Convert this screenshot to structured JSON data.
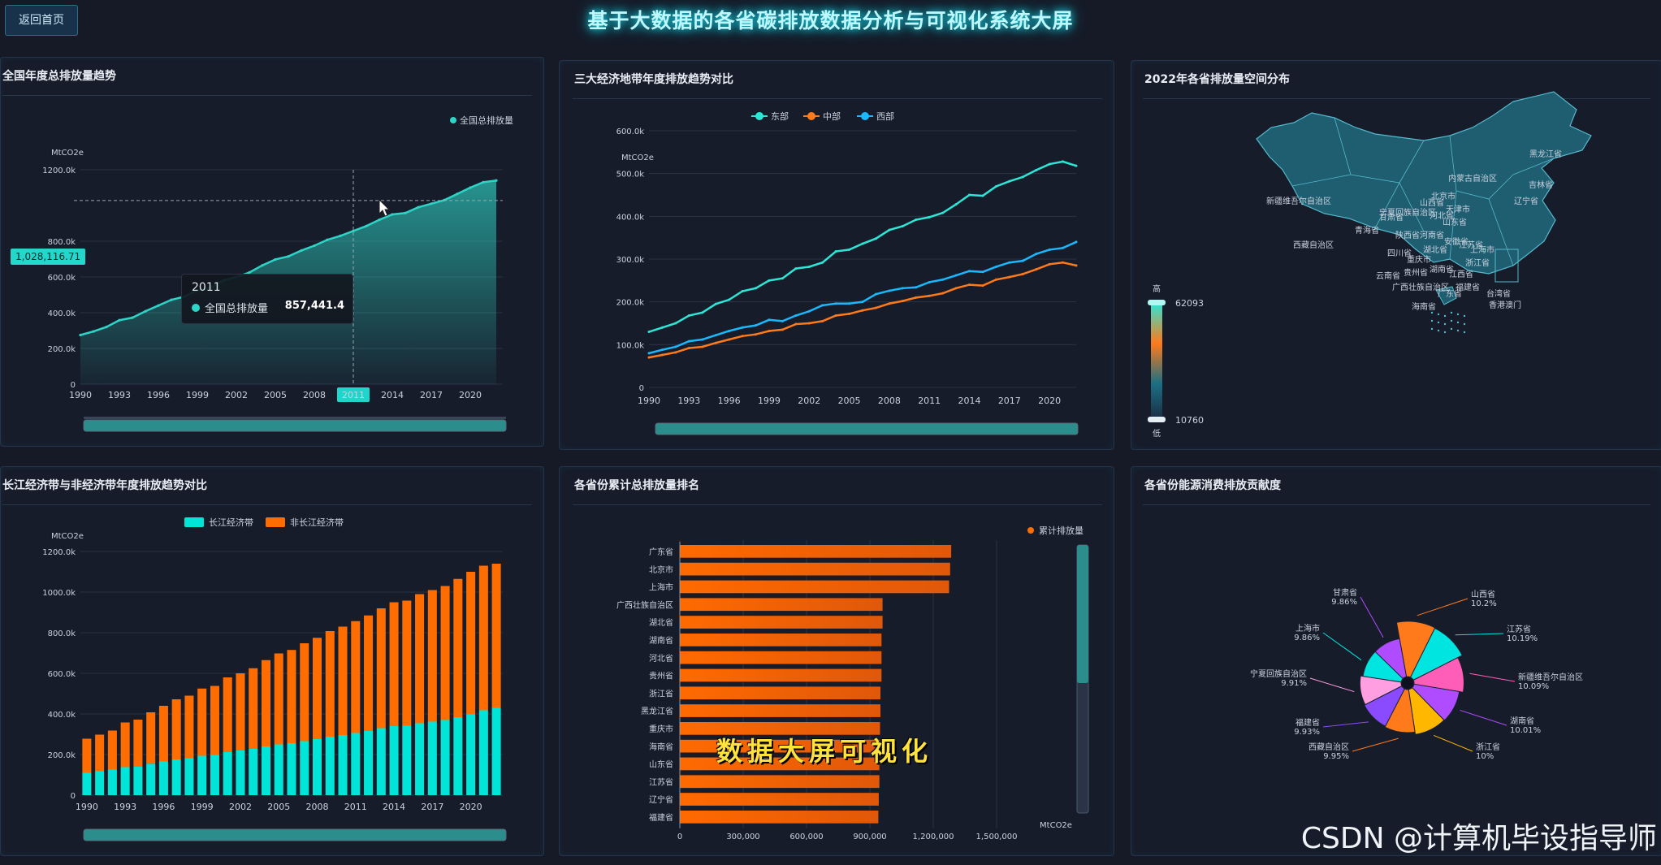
{
  "header": {
    "back_label": "返回首页",
    "title": "基于大数据的各省碳排放数据分析与可视化系统大屏"
  },
  "panels": {
    "national": {
      "title": "全国年度总排放量趋势",
      "legend": "全国总排放量",
      "unit": "MtCO2e"
    },
    "regions": {
      "title": "三大经济地带年度排放趋势对比",
      "unit": "MtCO2e"
    },
    "map": {
      "title": "2022年各省排放量空间分布",
      "vmax_label": "高",
      "vmin_label": "低",
      "vmax": "62093",
      "vmin": "10760"
    },
    "yangtze": {
      "title": "长江经济带与非经济带年度排放趋势对比",
      "unit": "MtCO2e"
    },
    "ranking": {
      "title": "各省份累计总排放量排名",
      "legend": "累计排放量",
      "unit": "MtCO2e"
    },
    "energy": {
      "title": "各省份能源消费排放贡献度"
    }
  },
  "tooltip": {
    "year": "2011",
    "label": "全国总排放量",
    "value": "857,441.4"
  },
  "cursor": {
    "value": "1,028,116.71",
    "year": "2011"
  },
  "overlay": {
    "caption": "数据大屏可视化"
  },
  "watermark": "CSDN @计算机毕设指导师",
  "colors": {
    "teal": "#2ed4c6",
    "east": "#2ee6d6",
    "central": "#ff7a1a",
    "west": "#19b8ff",
    "orange": "#ff6d00",
    "cyan": "#00e5d8"
  },
  "map_labels": [
    "黑龙江省",
    "吉林省",
    "辽宁省",
    "内蒙古自治区",
    "新疆维吾尔自治区",
    "甘肃省",
    "宁夏回族自治区",
    "青海省",
    "陕西省",
    "山西省",
    "河北省",
    "北京市",
    "天津市",
    "山东省",
    "河南省",
    "西藏自治区",
    "四川省",
    "重庆市",
    "湖北省",
    "安徽省",
    "江苏省",
    "上海市",
    "浙江省",
    "湖南省",
    "江西省",
    "福建省",
    "贵州省",
    "云南省",
    "广西壮族自治区",
    "广东省",
    "台湾省",
    "海南省",
    "香港澳门"
  ],
  "chart_data": [
    {
      "type": "area",
      "title": "全国年度总排放量趋势",
      "ylabel": "MtCO2e",
      "legend": [
        "全国总排放量"
      ],
      "ylim": [
        0,
        1200000
      ],
      "yticks": [
        "0",
        "200.0k",
        "400.0k",
        "600.0k",
        "800.0k",
        "1200.0k"
      ],
      "xticks": [
        "1990",
        "1993",
        "1996",
        "1999",
        "2002",
        "2005",
        "2008",
        "2011",
        "2014",
        "2017",
        "2020"
      ],
      "x": [
        1990,
        1991,
        1992,
        1993,
        1994,
        1995,
        1996,
        1997,
        1998,
        1999,
        2000,
        2001,
        2002,
        2003,
        2004,
        2005,
        2006,
        2007,
        2008,
        2009,
        2010,
        2011,
        2012,
        2013,
        2014,
        2015,
        2016,
        2017,
        2018,
        2019,
        2020,
        2021,
        2022
      ],
      "series": [
        {
          "name": "全国总排放量",
          "values": [
            275000,
            295000,
            320000,
            358000,
            372000,
            408000,
            440000,
            472000,
            490000,
            525000,
            538000,
            580000,
            600000,
            625000,
            665000,
            698000,
            715000,
            748000,
            775000,
            808000,
            830000,
            857441,
            885000,
            920000,
            950000,
            958000,
            990000,
            1010000,
            1030000,
            1065000,
            1100000,
            1130000,
            1140000
          ]
        }
      ]
    },
    {
      "type": "line",
      "title": "三大经济地带年度排放趋势对比",
      "ylabel": "MtCO2e",
      "legend": [
        "东部",
        "中部",
        "西部"
      ],
      "ylim": [
        0,
        600000
      ],
      "yticks": [
        "0",
        "100.0k",
        "200.0k",
        "300.0k",
        "400.0k",
        "500.0k",
        "600.0k"
      ],
      "xticks": [
        "1990",
        "1993",
        "1996",
        "1999",
        "2002",
        "2005",
        "2008",
        "2011",
        "2014",
        "2017",
        "2020"
      ],
      "x": [
        1990,
        1991,
        1992,
        1993,
        1994,
        1995,
        1996,
        1997,
        1998,
        1999,
        2000,
        2001,
        2002,
        2003,
        2004,
        2005,
        2006,
        2007,
        2008,
        2009,
        2010,
        2011,
        2012,
        2013,
        2014,
        2015,
        2016,
        2017,
        2018,
        2019,
        2020,
        2021,
        2022
      ],
      "series": [
        {
          "name": "东部",
          "values": [
            130000,
            140000,
            150000,
            168000,
            175000,
            195000,
            205000,
            225000,
            232000,
            250000,
            255000,
            278000,
            282000,
            292000,
            318000,
            322000,
            336000,
            348000,
            368000,
            377000,
            392000,
            398000,
            408000,
            428000,
            450000,
            448000,
            470000,
            482000,
            492000,
            508000,
            522000,
            528000,
            518000
          ]
        },
        {
          "name": "中部",
          "values": [
            70000,
            76000,
            82000,
            92000,
            95000,
            104000,
            112000,
            120000,
            124000,
            132000,
            135000,
            148000,
            150000,
            155000,
            168000,
            172000,
            180000,
            186000,
            196000,
            202000,
            210000,
            214000,
            220000,
            232000,
            240000,
            238000,
            252000,
            258000,
            265000,
            276000,
            288000,
            292000,
            285000
          ]
        },
        {
          "name": "西部",
          "values": [
            80000,
            88000,
            95000,
            108000,
            112000,
            122000,
            132000,
            140000,
            145000,
            158000,
            155000,
            168000,
            178000,
            192000,
            196000,
            196000,
            200000,
            218000,
            226000,
            232000,
            234000,
            246000,
            252000,
            262000,
            272000,
            270000,
            282000,
            292000,
            296000,
            312000,
            322000,
            326000,
            340000
          ]
        }
      ]
    },
    {
      "type": "bar",
      "title": "长江经济带与非经济带年度排放趋势对比",
      "ylabel": "MtCO2e",
      "legend": [
        "长江经济带",
        "非长江经济带"
      ],
      "stacked": true,
      "ylim": [
        0,
        1200000
      ],
      "yticks": [
        "0",
        "200.0k",
        "400.0k",
        "600.0k",
        "800.0k",
        "1000.0k",
        "1200.0k"
      ],
      "xticks": [
        "1990",
        "1993",
        "1996",
        "1999",
        "2002",
        "2005",
        "2008",
        "2011",
        "2014",
        "2017",
        "2020"
      ],
      "x": [
        1990,
        1991,
        1992,
        1993,
        1994,
        1995,
        1996,
        1997,
        1998,
        1999,
        2000,
        2001,
        2002,
        2003,
        2004,
        2005,
        2006,
        2007,
        2008,
        2009,
        2010,
        2011,
        2012,
        2013,
        2014,
        2015,
        2016,
        2017,
        2018,
        2019,
        2020,
        2021,
        2022
      ],
      "series": [
        {
          "name": "长江经济带",
          "values": [
            110000,
            118000,
            126000,
            138000,
            143000,
            155000,
            166000,
            176000,
            182000,
            194000,
            198000,
            212000,
            220000,
            228000,
            240000,
            250000,
            256000,
            266000,
            276000,
            288000,
            296000,
            306000,
            316000,
            330000,
            340000,
            342000,
            354000,
            362000,
            370000,
            384000,
            398000,
            418000,
            430000
          ]
        },
        {
          "name": "非长江经济带",
          "values": [
            168000,
            180000,
            192000,
            220000,
            229000,
            253000,
            274000,
            296000,
            308000,
            331000,
            340000,
            368000,
            380000,
            397000,
            425000,
            448000,
            459000,
            482000,
            499000,
            520000,
            534000,
            551000,
            569000,
            590000,
            610000,
            616000,
            636000,
            648000,
            660000,
            681000,
            702000,
            712000,
            710000
          ]
        }
      ]
    },
    {
      "type": "bar",
      "orientation": "horizontal",
      "title": "各省份累计总排放量排名",
      "legend": [
        "累计排放量"
      ],
      "xlabel": "MtCO2e",
      "xlim": [
        0,
        1500000
      ],
      "xticks": [
        "0",
        "300,000",
        "600,000",
        "900,000",
        "1,200,000",
        "1,500,000"
      ],
      "categories": [
        "广东省",
        "北京市",
        "上海市",
        "广西壮族自治区",
        "湖北省",
        "湖南省",
        "河北省",
        "贵州省",
        "浙江省",
        "黑龙江省",
        "重庆市",
        "海南省",
        "山东省",
        "江苏省",
        "辽宁省",
        "福建省"
      ],
      "values": [
        1285000,
        1280000,
        1275000,
        960000,
        960000,
        955000,
        955000,
        955000,
        950000,
        950000,
        948000,
        945000,
        945000,
        945000,
        942000,
        940000
      ]
    },
    {
      "type": "pie",
      "title": "各省份能源消费排放贡献度",
      "categories": [
        "山西省",
        "江苏省",
        "新疆维吾尔自治区",
        "湖南省",
        "浙江省",
        "西藏自治区",
        "福建省",
        "宁夏回族自治区",
        "上海市",
        "甘肃省"
      ],
      "values": [
        10.2,
        10.19,
        10.09,
        10.01,
        10.0,
        9.95,
        9.93,
        9.91,
        9.86,
        9.86
      ],
      "labels": [
        "10.2%",
        "10.19%",
        "10.09%",
        "10.01%",
        "10%",
        "9.95%",
        "9.93%",
        "9.91%",
        "9.86%",
        "9.86%"
      ]
    }
  ]
}
